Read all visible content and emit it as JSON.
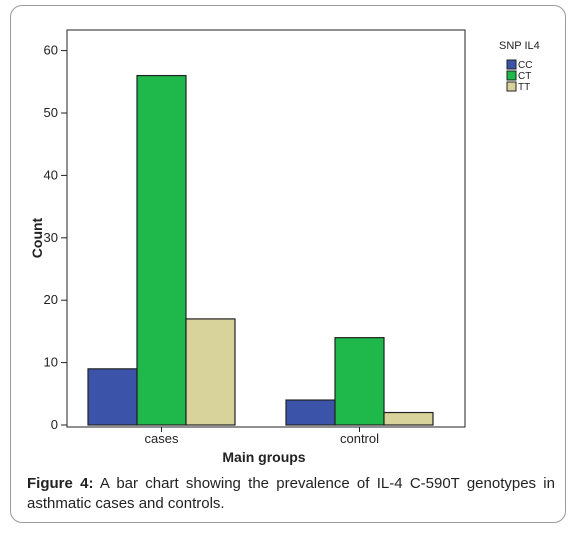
{
  "chart_data": {
    "type": "bar",
    "categories": [
      "cases",
      "control"
    ],
    "series": [
      {
        "name": "CC",
        "values": [
          9,
          4
        ],
        "color": "#3b54aa"
      },
      {
        "name": "CT",
        "values": [
          56,
          14
        ],
        "color": "#1fb84b"
      },
      {
        "name": "TT",
        "values": [
          17,
          2
        ],
        "color": "#d8d39a"
      }
    ],
    "xlabel": "Main groups",
    "ylabel": "Count",
    "ylim": [
      0,
      60
    ],
    "yticks": [
      "0",
      "10",
      "20",
      "30",
      "40",
      "50",
      "60"
    ],
    "legend_title": "SNP IL4",
    "legend_position": "top-right",
    "grid": false
  },
  "caption": {
    "label": "Figure 4:",
    "text": " A bar chart showing the prevalence of IL-4 C-590T genotypes in asthmatic cases and controls."
  }
}
